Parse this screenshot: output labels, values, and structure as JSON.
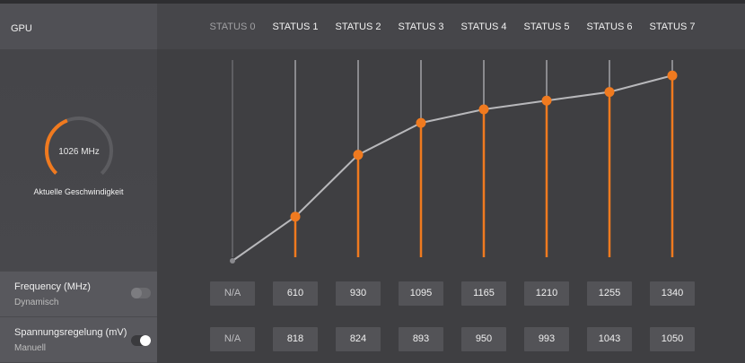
{
  "sidebar": {
    "title": "GPU",
    "gauge": {
      "value_text": "1026 MHz",
      "caption": "Aktuelle Geschwindigkeit",
      "fill_fraction": 0.42,
      "accent_color": "#f07a1f"
    },
    "settings": [
      {
        "title": "Frequency (MHz)",
        "mode": "Dynamisch",
        "toggle_on": false
      },
      {
        "title": "Spannungsregelung (mV)",
        "mode": "Manuell",
        "toggle_on": true
      }
    ]
  },
  "states": [
    {
      "label": "STATUS 0",
      "enabled": false,
      "frequency": "N/A",
      "voltage": "N/A"
    },
    {
      "label": "STATUS 1",
      "enabled": true,
      "frequency": "610",
      "voltage": "818"
    },
    {
      "label": "STATUS 2",
      "enabled": true,
      "frequency": "930",
      "voltage": "824"
    },
    {
      "label": "STATUS 3",
      "enabled": true,
      "frequency": "1095",
      "voltage": "893"
    },
    {
      "label": "STATUS 4",
      "enabled": true,
      "frequency": "1165",
      "voltage": "950"
    },
    {
      "label": "STATUS 5",
      "enabled": true,
      "frequency": "1210",
      "voltage": "993"
    },
    {
      "label": "STATUS 6",
      "enabled": true,
      "frequency": "1255",
      "voltage": "1043"
    },
    {
      "label": "STATUS 7",
      "enabled": true,
      "frequency": "1340",
      "voltage": "1050"
    }
  ],
  "colors": {
    "accent": "#f07a1f",
    "line": "#b8b8bb",
    "track": "#8a8a8e"
  }
}
